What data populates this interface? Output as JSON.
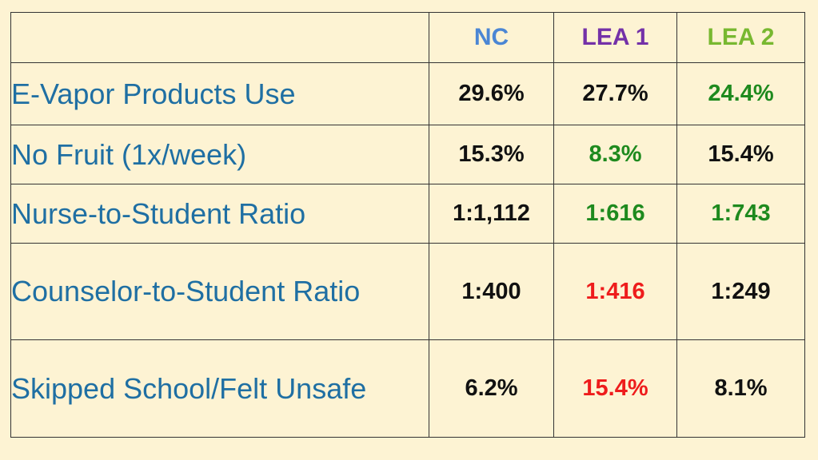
{
  "table": {
    "headers": [
      {
        "label": "",
        "color": "#000000"
      },
      {
        "label": "NC",
        "color": "#4b86d4"
      },
      {
        "label": "LEA 1",
        "color": "#7431a8"
      },
      {
        "label": "LEA 2",
        "color": "#78b830"
      }
    ],
    "rows": [
      {
        "label": "E-Vapor Products Use",
        "cells": [
          {
            "value": "29.6%",
            "color": "#111111"
          },
          {
            "value": "27.7%",
            "color": "#111111"
          },
          {
            "value": "24.4%",
            "color": "#1e8a1e"
          }
        ]
      },
      {
        "label": "No Fruit (1x/week)",
        "cells": [
          {
            "value": "15.3%",
            "color": "#111111"
          },
          {
            "value": "8.3%",
            "color": "#1e8a1e"
          },
          {
            "value": "15.4%",
            "color": "#111111"
          }
        ]
      },
      {
        "label": "Nurse-to-Student Ratio",
        "cells": [
          {
            "value": "1:1,112",
            "color": "#111111"
          },
          {
            "value": "1:616",
            "color": "#1e8a1e"
          },
          {
            "value": "1:743",
            "color": "#1e8a1e"
          }
        ]
      },
      {
        "label": "Counselor-to-Student Ratio",
        "cells": [
          {
            "value": "1:400",
            "color": "#111111"
          },
          {
            "value": "1:416",
            "color": "#ee1c1c"
          },
          {
            "value": "1:249",
            "color": "#111111"
          }
        ]
      },
      {
        "label": "Skipped School/Felt Unsafe",
        "cells": [
          {
            "value": "6.2%",
            "color": "#111111"
          },
          {
            "value": "15.4%",
            "color": "#ee1c1c"
          },
          {
            "value": "8.1%",
            "color": "#111111"
          }
        ]
      }
    ]
  }
}
